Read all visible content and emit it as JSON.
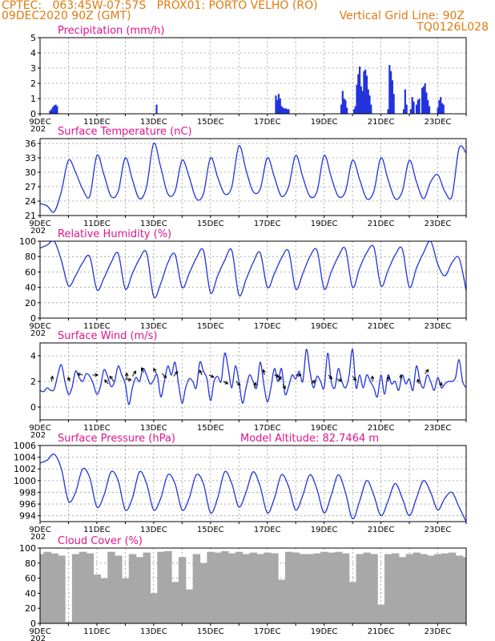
{
  "header": {
    "line1_left": "CPTEC:   063:45W-07:57S   PROX01: PORTO VELHO (RO)",
    "line2_left": "09DEC2020 90Z (GMT)",
    "line2_right": "Vertical Grid Line: 90Z",
    "line3_right": "TQ0126L028"
  },
  "colors": {
    "header": "#e07a10",
    "title": "#e0148c",
    "series": "#2233dd",
    "cloud": "#a8a8a8",
    "frame": "#000000",
    "grid": "#999999"
  },
  "x_axis": {
    "days": 15,
    "date_labels": [
      "9DEC",
      "11DEC",
      "13DEC",
      "15DEC",
      "17DEC",
      "19DEC",
      "21DEC",
      "23DEC"
    ],
    "date_label_day_offsets": [
      0,
      2,
      4,
      6,
      8,
      10,
      12,
      14
    ],
    "cut_year_text": "202"
  },
  "chart_data": [
    {
      "id": "precip",
      "type": "bar",
      "title": "Precipitation (mm/h)",
      "ylim": [
        0,
        5
      ],
      "yticks": [
        "0",
        "1",
        "2",
        "3",
        "4",
        "5"
      ],
      "ytick_values": [
        0,
        1,
        2,
        3,
        4,
        5
      ],
      "x": [
        0.35,
        0.4,
        0.45,
        0.5,
        0.55,
        0.6,
        4.1,
        8.3,
        8.35,
        8.4,
        8.45,
        8.5,
        8.55,
        8.6,
        8.65,
        8.7,
        8.75,
        10.6,
        10.65,
        10.7,
        10.75,
        10.8,
        11.05,
        11.1,
        11.15,
        11.2,
        11.25,
        11.3,
        11.35,
        11.4,
        11.45,
        11.5,
        11.55,
        11.6,
        11.65,
        12.25,
        12.3,
        12.35,
        12.4,
        12.45,
        12.8,
        12.85,
        12.9,
        13.05,
        13.1,
        13.15,
        13.25,
        13.3,
        13.35,
        13.45,
        13.5,
        13.55,
        13.6,
        13.65,
        13.7,
        14.0,
        14.05,
        14.1,
        14.15,
        14.2
      ],
      "values": [
        0.2,
        0.3,
        0.45,
        0.55,
        0.6,
        0.5,
        0.6,
        1.2,
        0.9,
        1.3,
        1.0,
        0.5,
        0.4,
        0.35,
        0.35,
        0.3,
        0.3,
        0.6,
        1.5,
        1.0,
        0.9,
        0.4,
        0.3,
        0.5,
        1.9,
        2.6,
        3.1,
        1.8,
        1.5,
        2.8,
        2.9,
        2.5,
        1.6,
        1.2,
        0.6,
        0.3,
        3.2,
        2.8,
        2.2,
        1.3,
        0.3,
        1.6,
        0.6,
        0.3,
        1.1,
        0.8,
        0.6,
        0.9,
        1.0,
        1.7,
        1.8,
        2.0,
        1.4,
        0.9,
        0.5,
        0.4,
        0.9,
        1.1,
        0.7,
        0.6
      ]
    },
    {
      "id": "temp",
      "type": "line",
      "title": "Surface Temperature (nC)",
      "ylim": [
        21,
        37
      ],
      "yticks": [
        "21",
        "24",
        "27",
        "30",
        "33",
        "36"
      ],
      "ytick_values": [
        21,
        24,
        27,
        30,
        33,
        36
      ],
      "x": [
        0,
        0.25,
        0.5,
        0.75,
        1,
        1.25,
        1.5,
        1.75,
        2,
        2.25,
        2.5,
        2.75,
        3,
        3.25,
        3.5,
        3.75,
        4,
        4.25,
        4.5,
        4.75,
        5,
        5.25,
        5.5,
        5.75,
        6,
        6.25,
        6.5,
        6.75,
        7,
        7.25,
        7.5,
        7.75,
        8,
        8.25,
        8.5,
        8.75,
        9,
        9.25,
        9.5,
        9.75,
        10,
        10.25,
        10.5,
        10.75,
        11,
        11.25,
        11.5,
        11.75,
        12,
        12.25,
        12.5,
        12.75,
        13,
        13.25,
        13.5,
        13.75,
        14,
        14.25,
        14.5,
        14.75,
        15
      ],
      "values": [
        23.5,
        23.0,
        21.8,
        26.0,
        32.5,
        30.0,
        26.5,
        25.0,
        33.5,
        29.5,
        25.0,
        26.0,
        33.0,
        28.5,
        24.5,
        27.0,
        36.0,
        31.0,
        25.5,
        26.0,
        32.5,
        29.0,
        24.5,
        25.5,
        33.0,
        29.0,
        25.5,
        27.0,
        35.5,
        30.5,
        26.0,
        26.5,
        33.0,
        29.0,
        25.0,
        27.0,
        33.5,
        29.0,
        25.0,
        26.0,
        33.5,
        29.0,
        25.0,
        26.0,
        32.5,
        28.5,
        24.5,
        26.0,
        33.0,
        28.5,
        24.5,
        26.0,
        32.5,
        28.0,
        24.5,
        28.0,
        29.5,
        26.0,
        25.0,
        35.0,
        34.0
      ]
    },
    {
      "id": "rh",
      "type": "line",
      "title": "Relative Humidity (%)",
      "ylim": [
        0,
        100
      ],
      "yticks": [
        "0",
        "20",
        "40",
        "60",
        "80",
        "100"
      ],
      "ytick_values": [
        0,
        20,
        40,
        60,
        80,
        100
      ],
      "x": [
        0,
        0.25,
        0.5,
        0.75,
        1,
        1.25,
        1.5,
        1.75,
        2,
        2.25,
        2.5,
        2.75,
        3,
        3.25,
        3.5,
        3.75,
        4,
        4.25,
        4.5,
        4.75,
        5,
        5.25,
        5.5,
        5.75,
        6,
        6.25,
        6.5,
        6.75,
        7,
        7.25,
        7.5,
        7.75,
        8,
        8.25,
        8.5,
        8.75,
        9,
        9.25,
        9.5,
        9.75,
        10,
        10.25,
        10.5,
        10.75,
        11,
        11.25,
        11.5,
        11.75,
        12,
        12.25,
        12.5,
        12.75,
        13,
        13.25,
        13.5,
        13.75,
        14,
        14.25,
        14.5,
        14.75,
        15
      ],
      "values": [
        91,
        95,
        100,
        75,
        42,
        55,
        72,
        80,
        37,
        52,
        72,
        84,
        38,
        58,
        77,
        85,
        28,
        45,
        72,
        83,
        40,
        58,
        78,
        88,
        33,
        55,
        75,
        88,
        30,
        50,
        72,
        85,
        40,
        58,
        78,
        87,
        38,
        58,
        80,
        88,
        38,
        60,
        80,
        90,
        40,
        65,
        85,
        92,
        42,
        62,
        82,
        90,
        40,
        65,
        85,
        100,
        70,
        55,
        72,
        78,
        36
      ]
    },
    {
      "id": "wind",
      "type": "line",
      "title": "Surface Wind (m/s)",
      "ylim": [
        -1,
        5
      ],
      "yticks": [
        "0",
        "2",
        "4"
      ],
      "ytick_values": [
        0,
        2,
        4
      ],
      "x": [
        0,
        0.125,
        0.25,
        0.375,
        0.5,
        0.625,
        0.75,
        0.875,
        1,
        1.125,
        1.25,
        1.375,
        1.5,
        1.625,
        1.75,
        1.875,
        2,
        2.125,
        2.25,
        2.375,
        2.5,
        2.625,
        2.75,
        2.875,
        3,
        3.125,
        3.25,
        3.375,
        3.5,
        3.625,
        3.75,
        3.875,
        4,
        4.125,
        4.25,
        4.375,
        4.5,
        4.625,
        4.75,
        4.875,
        5,
        5.125,
        5.25,
        5.375,
        5.5,
        5.625,
        5.75,
        5.875,
        6,
        6.125,
        6.25,
        6.375,
        6.5,
        6.625,
        6.75,
        6.875,
        7,
        7.125,
        7.25,
        7.375,
        7.5,
        7.625,
        7.75,
        7.875,
        8,
        8.125,
        8.25,
        8.375,
        8.5,
        8.625,
        8.75,
        8.875,
        9,
        9.125,
        9.25,
        9.375,
        9.5,
        9.625,
        9.75,
        9.875,
        10,
        10.125,
        10.25,
        10.375,
        10.5,
        10.625,
        10.75,
        10.875,
        11,
        11.125,
        11.25,
        11.375,
        11.5,
        11.625,
        11.75,
        11.875,
        12,
        12.125,
        12.25,
        12.375,
        12.5,
        12.625,
        12.75,
        12.875,
        13,
        13.125,
        13.25,
        13.375,
        13.5,
        13.625,
        13.75,
        13.875,
        14,
        14.125,
        14.25,
        14.375,
        14.5,
        14.625,
        14.75,
        14.875,
        15
      ],
      "values": [
        1.3,
        1.2,
        1.5,
        1.3,
        1.4,
        2.5,
        3.3,
        2.0,
        1.0,
        1.5,
        2.8,
        2.3,
        2.0,
        2.6,
        2.4,
        1.8,
        1.0,
        1.6,
        2.9,
        2.4,
        1.6,
        2.0,
        3.2,
        2.5,
        1.8,
        0.2,
        1.5,
        2.3,
        2.0,
        3.0,
        2.5,
        1.8,
        2.1,
        2.5,
        0.8,
        2.0,
        3.2,
        2.5,
        3.5,
        1.8,
        0.3,
        1.5,
        2.2,
        2.0,
        1.5,
        3.5,
        2.8,
        2.2,
        0.5,
        2.0,
        2.4,
        2.0,
        4.2,
        3.0,
        1.5,
        3.2,
        2.0,
        0.3,
        1.5,
        2.5,
        2.0,
        1.5,
        3.5,
        1.8,
        0.4,
        1.5,
        3.0,
        2.0,
        3.0,
        1.0,
        1.6,
        2.5,
        2.2,
        2.8,
        2.0,
        4.5,
        2.8,
        1.5,
        2.4,
        2.0,
        1.5,
        4.2,
        2.0,
        1.5,
        3.0,
        2.0,
        1.5,
        2.4,
        4.5,
        1.5,
        2.5,
        1.5,
        2.5,
        2.0,
        1.5,
        0.8,
        2.5,
        1.0,
        2.5,
        1.8,
        2.0,
        1.3,
        2.5,
        1.8,
        2.2,
        1.3,
        3.2,
        2.0,
        1.5,
        2.5,
        2.0,
        1.3,
        2.3,
        1.5,
        1.8,
        2.0,
        2.0,
        2.3,
        3.7,
        2.0,
        1.5
      ],
      "arrows": [
        {
          "x": 0.4,
          "y": 2.0,
          "u": 0.1,
          "v": 0.45
        },
        {
          "x": 1.05,
          "y": 2.0,
          "u": -0.15,
          "v": 0.35
        },
        {
          "x": 1.5,
          "y": 2.5,
          "u": -0.45,
          "v": 0.1
        },
        {
          "x": 1.85,
          "y": 2.5,
          "u": 0.45,
          "v": 0.0
        },
        {
          "x": 2.4,
          "y": 1.8,
          "u": -0.3,
          "v": 0.35
        },
        {
          "x": 2.6,
          "y": 2.0,
          "u": -0.35,
          "v": 0.45
        },
        {
          "x": 3.0,
          "y": 2.2,
          "u": 0.5,
          "v": -0.1
        },
        {
          "x": 3.05,
          "y": 2.2,
          "u": 0.0,
          "v": 0.5
        },
        {
          "x": 3.25,
          "y": 2.4,
          "u": 0.3,
          "v": 0.45
        },
        {
          "x": 3.65,
          "y": 2.7,
          "u": -0.2,
          "v": 0.4
        },
        {
          "x": 4.1,
          "y": 2.6,
          "u": -0.25,
          "v": 0.45
        },
        {
          "x": 4.3,
          "y": 2.6,
          "u": 0.35,
          "v": -0.35
        },
        {
          "x": 4.7,
          "y": 2.4,
          "u": 0.35,
          "v": 0.4
        },
        {
          "x": 5.7,
          "y": 2.5,
          "u": -0.2,
          "v": 0.4
        },
        {
          "x": 5.95,
          "y": 2.5,
          "u": 0.4,
          "v": -0.2
        },
        {
          "x": 6.45,
          "y": 2.0,
          "u": 0.4,
          "v": -0.2
        },
        {
          "x": 6.9,
          "y": 2.0,
          "u": 0.35,
          "v": -0.35
        },
        {
          "x": 7.55,
          "y": 1.5,
          "u": 0.1,
          "v": 0.45
        },
        {
          "x": 7.9,
          "y": 2.5,
          "u": -0.1,
          "v": 0.45
        },
        {
          "x": 8.25,
          "y": 2.5,
          "u": 0.4,
          "v": -0.15
        },
        {
          "x": 8.4,
          "y": 2.0,
          "u": 0.2,
          "v": 0.4
        },
        {
          "x": 8.55,
          "y": 1.8,
          "u": 0.2,
          "v": -0.4
        },
        {
          "x": 9.0,
          "y": 2.5,
          "u": 0.45,
          "v": 0.0
        },
        {
          "x": 9.55,
          "y": 1.8,
          "u": 0.3,
          "v": 0.3
        },
        {
          "x": 10.15,
          "y": 2.5,
          "u": 0.3,
          "v": -0.35
        },
        {
          "x": 10.45,
          "y": 2.2,
          "u": 0.4,
          "v": -0.2
        },
        {
          "x": 11.0,
          "y": 2.4,
          "u": 0.3,
          "v": -0.35
        },
        {
          "x": 11.7,
          "y": 2.0,
          "u": 0.0,
          "v": 0.45
        },
        {
          "x": 12.25,
          "y": 2.0,
          "u": 0.05,
          "v": 0.4
        },
        {
          "x": 12.7,
          "y": 2.1,
          "u": 0.0,
          "v": 0.45
        },
        {
          "x": 13.35,
          "y": 1.8,
          "u": -0.15,
          "v": 0.4
        },
        {
          "x": 13.55,
          "y": 2.6,
          "u": 0.3,
          "v": 0.35
        },
        {
          "x": 14.05,
          "y": 2.0,
          "u": 0.25,
          "v": -0.35
        }
      ]
    },
    {
      "id": "press",
      "type": "line",
      "title": "Surface Pressure (hPa)",
      "annotation": "Model Altitude: 82.7464 m",
      "ylim": [
        993,
        1006
      ],
      "yticks": [
        "994",
        "996",
        "998",
        "1000",
        "1002",
        "1004",
        "1006"
      ],
      "ytick_values": [
        994,
        996,
        998,
        1000,
        1002,
        1004,
        1006
      ],
      "x": [
        0,
        0.25,
        0.5,
        0.75,
        1,
        1.25,
        1.5,
        1.75,
        2,
        2.25,
        2.5,
        2.75,
        3,
        3.25,
        3.5,
        3.75,
        4,
        4.25,
        4.5,
        4.75,
        5,
        5.25,
        5.5,
        5.75,
        6,
        6.25,
        6.5,
        6.75,
        7,
        7.25,
        7.5,
        7.75,
        8,
        8.25,
        8.5,
        8.75,
        9,
        9.25,
        9.5,
        9.75,
        10,
        10.25,
        10.5,
        10.75,
        11,
        11.25,
        11.5,
        11.75,
        12,
        12.25,
        12.5,
        12.75,
        13,
        13.25,
        13.5,
        13.75,
        14,
        14.25,
        14.5,
        14.75,
        15
      ],
      "values": [
        1003.0,
        1003.5,
        1004.5,
        1002.0,
        996.5,
        998.0,
        1002.0,
        1000.5,
        995.5,
        997.5,
        1001.5,
        1000.0,
        995.0,
        997.0,
        1001.5,
        999.5,
        995.0,
        997.0,
        1001.0,
        999.5,
        995.0,
        997.0,
        1001.0,
        999.5,
        994.5,
        997.0,
        1001.5,
        999.5,
        995.5,
        998.0,
        1001.5,
        999.0,
        994.5,
        997.0,
        1001.0,
        999.0,
        995.0,
        997.5,
        1001.0,
        998.5,
        994.5,
        997.5,
        1001.0,
        998.0,
        993.5,
        996.5,
        1000.0,
        997.5,
        994.0,
        996.5,
        999.5,
        997.0,
        994.0,
        997.0,
        1000.0,
        998.0,
        995.0,
        997.0,
        998.0,
        995.5,
        993.0
      ]
    },
    {
      "id": "cloud",
      "type": "bar",
      "title": "Cloud Cover (%)",
      "ylim": [
        0,
        100
      ],
      "yticks": [
        "0",
        "20",
        "40",
        "60",
        "80",
        "100"
      ],
      "ytick_values": [
        0,
        20,
        40,
        60,
        80,
        100
      ],
      "x": [
        0,
        0.25,
        0.5,
        0.75,
        1,
        1.25,
        1.5,
        1.75,
        2,
        2.25,
        2.5,
        2.75,
        3,
        3.25,
        3.5,
        3.75,
        4,
        4.25,
        4.5,
        4.75,
        5,
        5.25,
        5.5,
        5.75,
        6,
        6.25,
        6.5,
        6.75,
        7,
        7.25,
        7.5,
        7.75,
        8,
        8.25,
        8.5,
        8.75,
        9,
        9.25,
        9.5,
        9.75,
        10,
        10.25,
        10.5,
        10.75,
        11,
        11.25,
        11.5,
        11.75,
        12,
        12.25,
        12.5,
        12.75,
        13,
        13.25,
        13.5,
        13.75,
        14,
        14.25,
        14.5,
        14.75,
        15
      ],
      "values": [
        92,
        95,
        93,
        90,
        2,
        92,
        95,
        93,
        65,
        60,
        95,
        90,
        60,
        92,
        88,
        94,
        40,
        95,
        96,
        55,
        88,
        45,
        92,
        80,
        95,
        94,
        96,
        93,
        95,
        92,
        94,
        92,
        94,
        93,
        58,
        95,
        94,
        92,
        92,
        93,
        95,
        94,
        95,
        93,
        55,
        92,
        94,
        92,
        25,
        92,
        93,
        88,
        92,
        94,
        92,
        90,
        92,
        93,
        94,
        90,
        88
      ]
    }
  ]
}
